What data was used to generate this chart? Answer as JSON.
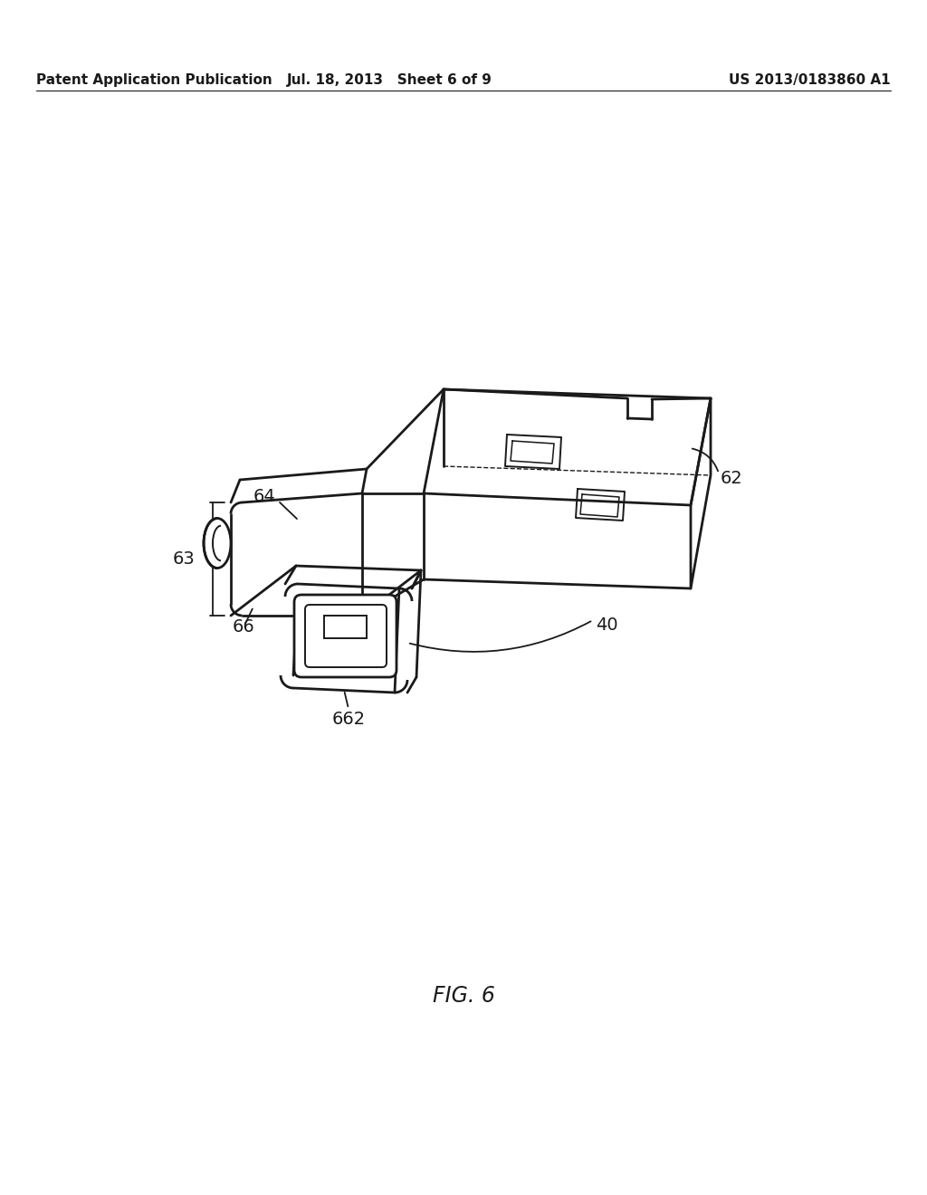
{
  "bg_color": "#ffffff",
  "lc": "#1a1a1a",
  "lw": 2.0,
  "tlw": 1.4,
  "header_left": "Patent Application Publication",
  "header_mid": "Jul. 18, 2013   Sheet 6 of 9",
  "header_right": "US 2013/0183860 A1",
  "fig_label": "FIG. 6"
}
